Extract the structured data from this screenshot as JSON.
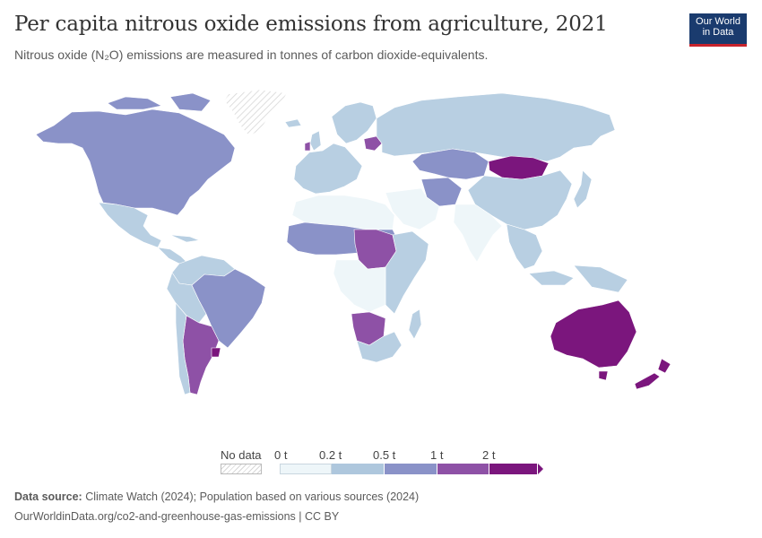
{
  "header": {
    "title": "Per capita nitrous oxide emissions from agriculture, 2021",
    "subtitle": "Nitrous oxide (N₂O) emissions are measured in tonnes of carbon dioxide-equivalents.",
    "logo_line1": "Our World",
    "logo_line2": "in Data"
  },
  "legend": {
    "no_data_label": "No data",
    "bins": [
      {
        "label": "0 t",
        "color": "#eef6f9"
      },
      {
        "label": "0.2 t",
        "color": "#aec7dd"
      },
      {
        "label": "0.5 t",
        "color": "#8a92c8"
      },
      {
        "label": "1 t",
        "color": "#8e51a6"
      },
      {
        "label": "2 t",
        "color": "#7b167d"
      }
    ]
  },
  "map_colors": {
    "very_low": "#eef6f9",
    "low": "#b8cfe2",
    "medium": "#8a92c8",
    "high": "#8e51a6",
    "very_high": "#7b167d",
    "no_data": "#f2f2f2",
    "border": "#ffffff"
  },
  "regions": [
    {
      "name": "Canada/USA",
      "level": "medium"
    },
    {
      "name": "Greenland",
      "level": "no_data"
    },
    {
      "name": "Mexico",
      "level": "low"
    },
    {
      "name": "Central America",
      "level": "low"
    },
    {
      "name": "Colombia/Venezuela",
      "level": "low"
    },
    {
      "name": "Brazil",
      "level": "medium"
    },
    {
      "name": "Argentina",
      "level": "high"
    },
    {
      "name": "Uruguay",
      "level": "very_high"
    },
    {
      "name": "Chile",
      "level": "low"
    },
    {
      "name": "Western Europe",
      "level": "low"
    },
    {
      "name": "Ireland",
      "level": "high"
    },
    {
      "name": "Belarus",
      "level": "high"
    },
    {
      "name": "Russia",
      "level": "low"
    },
    {
      "name": "Kazakhstan",
      "level": "medium"
    },
    {
      "name": "Mongolia",
      "level": "very_high"
    },
    {
      "name": "China",
      "level": "low"
    },
    {
      "name": "India",
      "level": "very_low"
    },
    {
      "name": "North Africa",
      "level": "very_low"
    },
    {
      "name": "Sahel",
      "level": "medium"
    },
    {
      "name": "Central African Republic",
      "level": "high"
    },
    {
      "name": "East Africa",
      "level": "low"
    },
    {
      "name": "Namibia/Botswana",
      "level": "high"
    },
    {
      "name": "Southern Africa",
      "level": "low"
    },
    {
      "name": "Australia",
      "level": "very_high"
    },
    {
      "name": "New Zealand",
      "level": "very_high"
    },
    {
      "name": "Southeast Asia",
      "level": "low"
    }
  ],
  "footer": {
    "source_label": "Data source:",
    "source_text": " Climate Watch (2024); Population based on various sources (2024)",
    "url_line": "OurWorldinData.org/co2-and-greenhouse-gas-emissions | CC BY"
  }
}
